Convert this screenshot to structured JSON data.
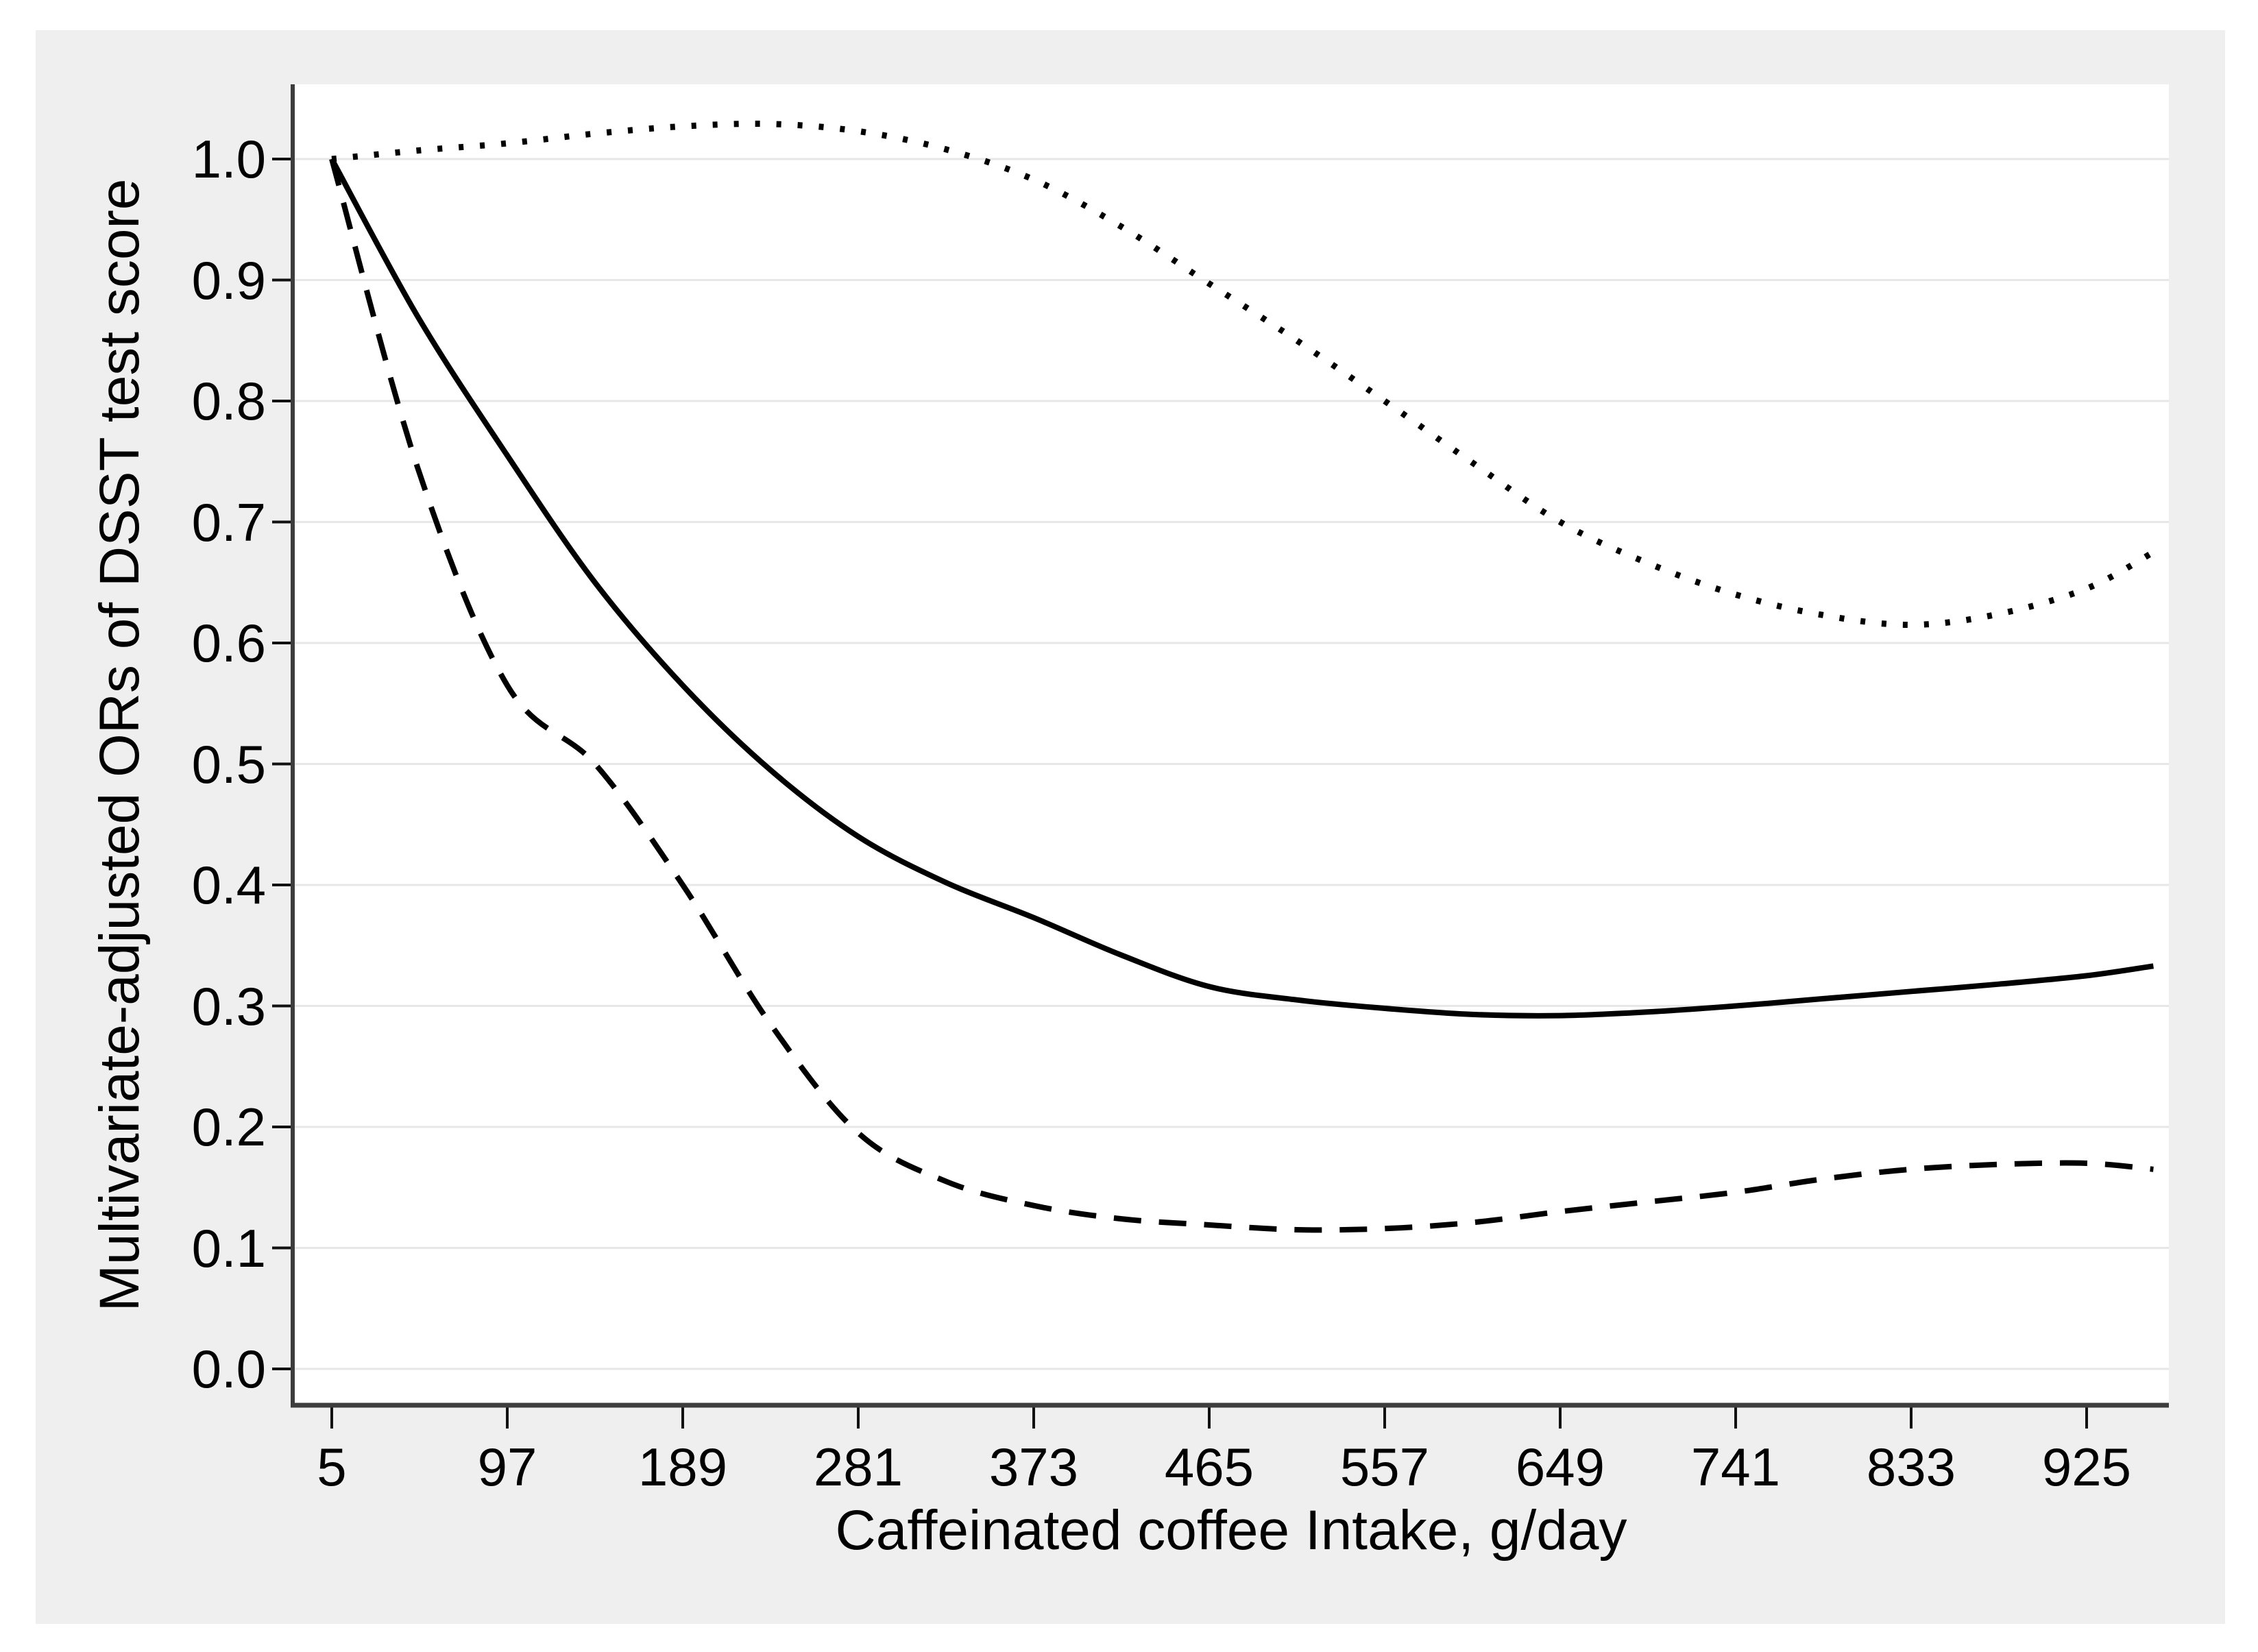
{
  "chart_data": {
    "type": "line",
    "title": "",
    "xlabel": "Caffeinated coffee Intake, g/day",
    "ylabel": "Multivariate-adjusted ORs of DSST test score",
    "x_ticks": [
      5,
      97,
      189,
      281,
      373,
      465,
      557,
      649,
      741,
      833,
      925
    ],
    "y_tick_labels": [
      "1.0",
      "0.9",
      "0.8",
      "0.7",
      "0.6",
      "0.5",
      "0.4",
      "0.3",
      "0.2",
      "0.1",
      "0.0"
    ],
    "y_tick_values": [
      1.0,
      0.9,
      0.8,
      0.7,
      0.6,
      0.5,
      0.4,
      0.3,
      0.2,
      0.1,
      0.0
    ],
    "xlim": [
      5,
      985
    ],
    "ylim": [
      0.0,
      1.09
    ],
    "grid": "horizontal",
    "legend_position": "none",
    "x": [
      5,
      50,
      97,
      143,
      189,
      235,
      281,
      327,
      373,
      419,
      465,
      511,
      557,
      603,
      649,
      695,
      741,
      787,
      833,
      879,
      925,
      960
    ],
    "series": [
      {
        "name": "solid-line",
        "style": "solid",
        "values": [
          1.0,
          0.87,
          0.755,
          0.65,
          0.565,
          0.495,
          0.44,
          0.402,
          0.373,
          0.342,
          0.316,
          0.305,
          0.298,
          0.293,
          0.292,
          0.295,
          0.3,
          0.306,
          0.312,
          0.318,
          0.325,
          0.333
        ]
      },
      {
        "name": "dashed-line",
        "style": "dashed",
        "values": [
          1.0,
          0.745,
          0.565,
          0.5,
          0.4,
          0.285,
          0.195,
          0.155,
          0.135,
          0.124,
          0.119,
          0.115,
          0.116,
          0.121,
          0.13,
          0.138,
          0.146,
          0.157,
          0.165,
          0.169,
          0.17,
          0.165
        ]
      },
      {
        "name": "dotted-line",
        "style": "dotted",
        "values": [
          1.0,
          1.007,
          1.013,
          1.021,
          1.027,
          1.029,
          1.023,
          1.008,
          0.983,
          0.944,
          0.897,
          0.85,
          0.8,
          0.749,
          0.7,
          0.666,
          0.64,
          0.623,
          0.615,
          0.624,
          0.645,
          0.675
        ]
      }
    ]
  },
  "colors": {
    "page_background": "#ffffff",
    "panel_background": "#efefef",
    "plot_background": "#ffffff",
    "gridline": "#e7e7e7",
    "axis_line": "#3d3d3d",
    "tick": "#111111",
    "line": "#000000",
    "text": "#000000"
  }
}
